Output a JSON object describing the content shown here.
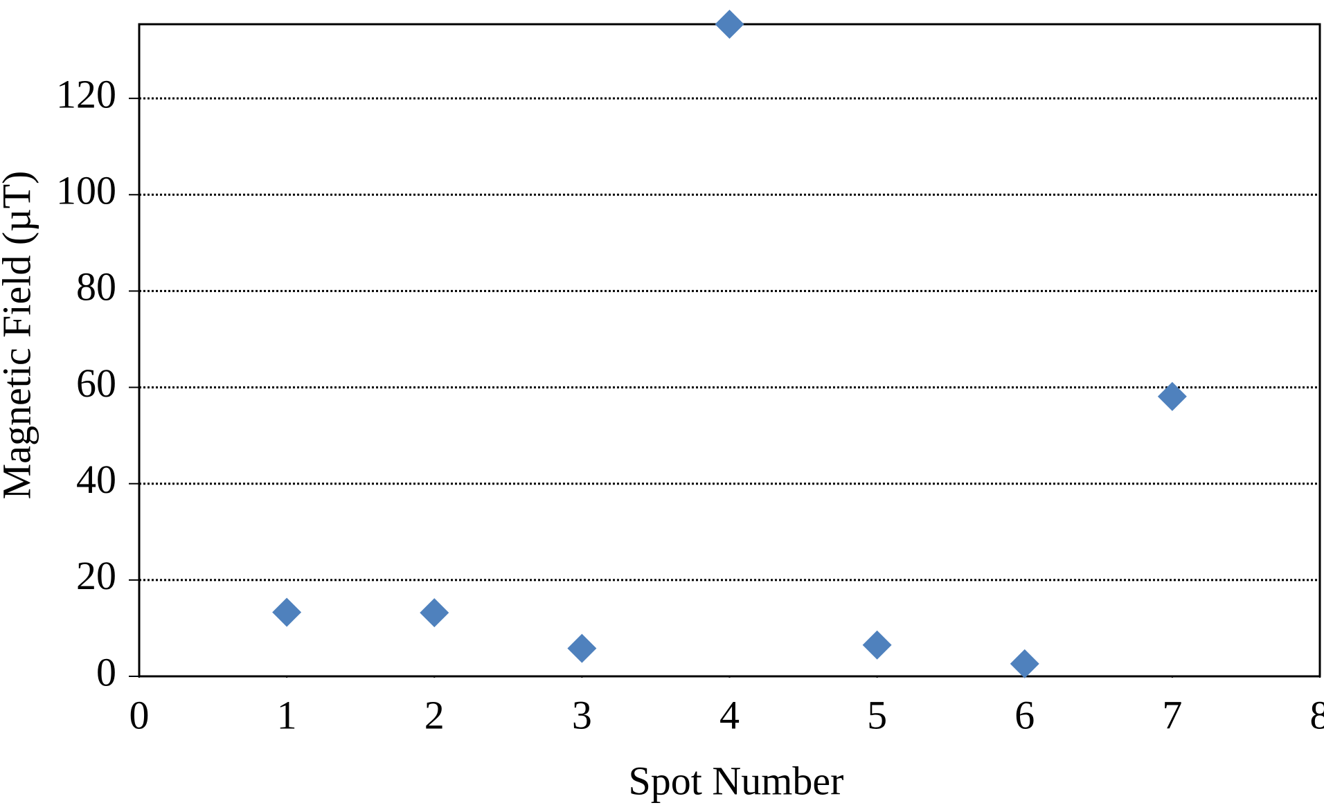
{
  "chart_data": {
    "type": "scatter",
    "x_label": "Spot Number",
    "y_label": "Magnetic Field (µT)",
    "x": [
      1,
      2,
      3,
      4,
      5,
      6,
      7
    ],
    "values": [
      13.3,
      13.2,
      5.8,
      135.4,
      6.5,
      2.6,
      58.1
    ],
    "color": "#4f81bd",
    "xlim": [
      0,
      8
    ],
    "xticks": [
      0,
      1,
      2,
      3,
      4,
      5,
      6,
      7,
      8
    ],
    "ylim": [
      0,
      135.4
    ],
    "yticks": [
      0,
      20,
      40,
      60,
      80,
      100,
      120
    ],
    "grid": true
  }
}
